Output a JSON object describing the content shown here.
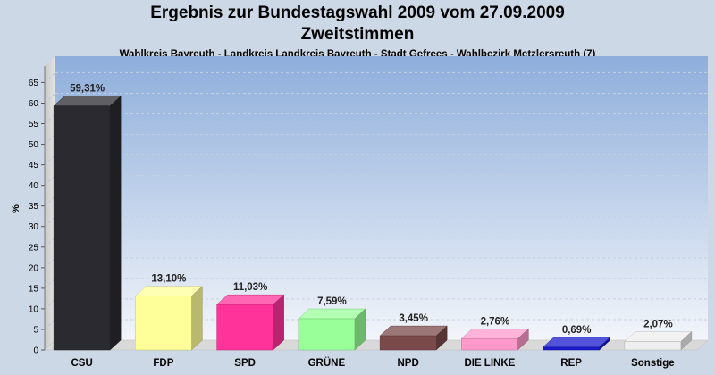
{
  "chart_data": {
    "type": "bar",
    "title": "Ergebnis zur Bundestagswahl 2009 vom 27.09.2009",
    "subtitle": "Zweitstimmen",
    "caption": "Wahlkreis Bayreuth - Landkreis Landkreis Bayreuth - Stadt Gefrees - Wahlbezirk Metzlersreuth (7)",
    "ylabel": "%",
    "xlabel": "",
    "ylim": [
      0,
      69
    ],
    "yticks": [
      0,
      5,
      10,
      15,
      20,
      25,
      30,
      35,
      40,
      45,
      50,
      55,
      60,
      65
    ],
    "grid": true,
    "categories": [
      "CSU",
      "FDP",
      "SPD",
      "GRÜNE",
      "NPD",
      "DIE LINKE",
      "REP",
      "Sonstige"
    ],
    "values": [
      59.31,
      13.1,
      11.03,
      7.59,
      3.45,
      2.76,
      0.69,
      2.07
    ],
    "value_labels": [
      "59,31%",
      "13,10%",
      "11,03%",
      "7,59%",
      "3,45%",
      "2,76%",
      "0,69%",
      "2,07%"
    ],
    "colors": [
      "#2a2a30",
      "#ffff99",
      "#ff3399",
      "#99ff99",
      "#7a4a4a",
      "#ff99cc",
      "#1a1acc",
      "#eeeeee"
    ]
  }
}
